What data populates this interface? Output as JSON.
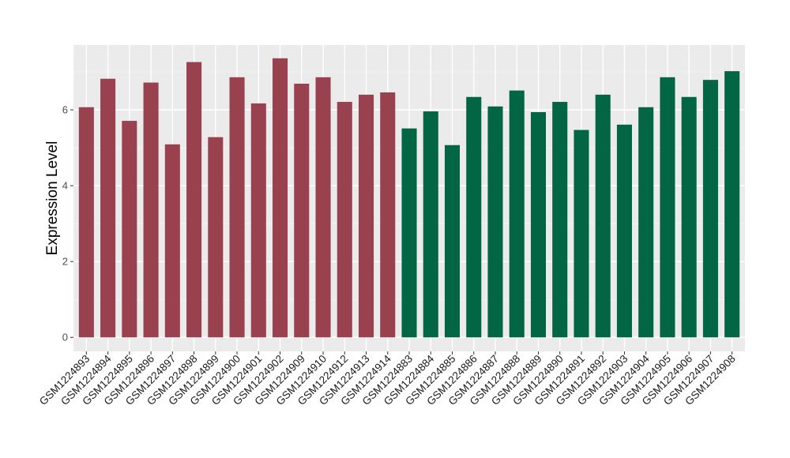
{
  "chart_data": {
    "type": "bar",
    "title": "",
    "xlabel": "",
    "ylabel": "Expression Level",
    "ylim": [
      -0.37,
      7.71
    ],
    "yticks": [
      0,
      2,
      4,
      6
    ],
    "grid": true,
    "categories": [
      "GSM1224893",
      "GSM1224894",
      "GSM1224895",
      "GSM1224896",
      "GSM1224897",
      "GSM1224898",
      "GSM1224899",
      "GSM1224900",
      "GSM1224901",
      "GSM1224902",
      "GSM1224909",
      "GSM1224910",
      "GSM1224912",
      "GSM1224913",
      "GSM1224914",
      "GSM1224883",
      "GSM1224884",
      "GSM1224885",
      "GSM1224886",
      "GSM1224887",
      "GSM1224888",
      "GSM1224889",
      "GSM1224890",
      "GSM1224891",
      "GSM1224892",
      "GSM1224903",
      "GSM1224904",
      "GSM1224905",
      "GSM1224906",
      "GSM1224907",
      "GSM1224908"
    ],
    "values": [
      6.07,
      6.82,
      5.71,
      6.72,
      5.09,
      7.26,
      5.28,
      6.86,
      6.17,
      7.36,
      6.69,
      6.86,
      6.21,
      6.4,
      6.46,
      5.51,
      5.96,
      5.07,
      6.34,
      6.09,
      6.51,
      5.94,
      6.21,
      5.47,
      6.4,
      5.61,
      6.07,
      6.86,
      6.34,
      6.79,
      7.02
    ],
    "groups": [
      0,
      0,
      0,
      0,
      0,
      0,
      0,
      0,
      0,
      0,
      0,
      0,
      0,
      0,
      0,
      1,
      1,
      1,
      1,
      1,
      1,
      1,
      1,
      1,
      1,
      1,
      1,
      1,
      1,
      1,
      1
    ],
    "group_colors": [
      "#9a4150",
      "#026645"
    ]
  }
}
